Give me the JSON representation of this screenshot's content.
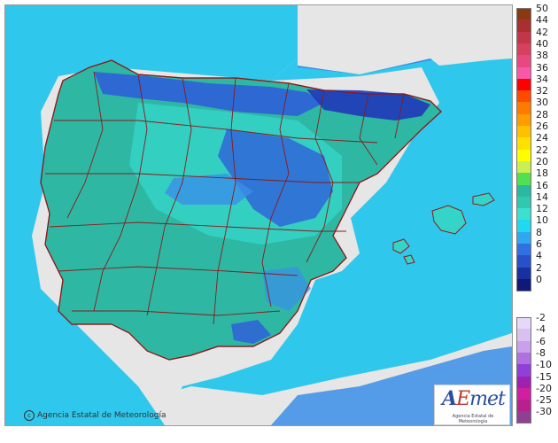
{
  "credit": "Agencia Estatal de Meteorología",
  "logo": {
    "word_a": "A",
    "word_e": "E",
    "word_rest": "met",
    "sub": "Agencia Estatal de Meteorología"
  },
  "legend": {
    "positive": [
      {
        "label": "50",
        "color": "#8a3a10"
      },
      {
        "label": "44",
        "color": "#a83030"
      },
      {
        "label": "42",
        "color": "#c03848"
      },
      {
        "label": "40",
        "color": "#d84060"
      },
      {
        "label": "38",
        "color": "#e84880"
      },
      {
        "label": "36",
        "color": "#f858a8"
      },
      {
        "label": "34",
        "color": "#ff0000"
      },
      {
        "label": "32",
        "color": "#ff4a00"
      },
      {
        "label": "30",
        "color": "#ff7a00"
      },
      {
        "label": "28",
        "color": "#ff9d00"
      },
      {
        "label": "26",
        "color": "#ffc000"
      },
      {
        "label": "24",
        "color": "#ffe000"
      },
      {
        "label": "22",
        "color": "#ffff00"
      },
      {
        "label": "20",
        "color": "#c8f050"
      },
      {
        "label": "18",
        "color": "#50e050"
      },
      {
        "label": "16",
        "color": "#2bb8a0"
      },
      {
        "label": "14",
        "color": "#30c8b0"
      },
      {
        "label": "12",
        "color": "#3de0d0"
      },
      {
        "label": "10",
        "color": "#20d8f0"
      },
      {
        "label": "8",
        "color": "#30a8f0"
      },
      {
        "label": "6",
        "color": "#3070e0"
      },
      {
        "label": "4",
        "color": "#2850c8"
      },
      {
        "label": "2",
        "color": "#1830a0"
      },
      {
        "label": "0",
        "color": "#101878"
      }
    ],
    "negative": [
      {
        "label": "-2",
        "color": "#e8d8f8"
      },
      {
        "label": "-4",
        "color": "#d8c0f0"
      },
      {
        "label": "-6",
        "color": "#c8a0ec"
      },
      {
        "label": "-8",
        "color": "#b070e0"
      },
      {
        "label": "-10",
        "color": "#9040d8"
      },
      {
        "label": "-15",
        "color": "#a020b0"
      },
      {
        "label": "-20",
        "color": "#d020a0"
      },
      {
        "label": "-25",
        "color": "#b82090"
      },
      {
        "label": "-30",
        "color": "#904090"
      }
    ]
  },
  "colors": {
    "sea": "#2fc8ec",
    "land_low": "#2eb8a4",
    "land_mid": "#34d4c8",
    "land_cool": "#3a8ee8",
    "land_cold": "#2f5fd8",
    "outside": "#e6e6e6",
    "border": "#8b1a1a"
  }
}
